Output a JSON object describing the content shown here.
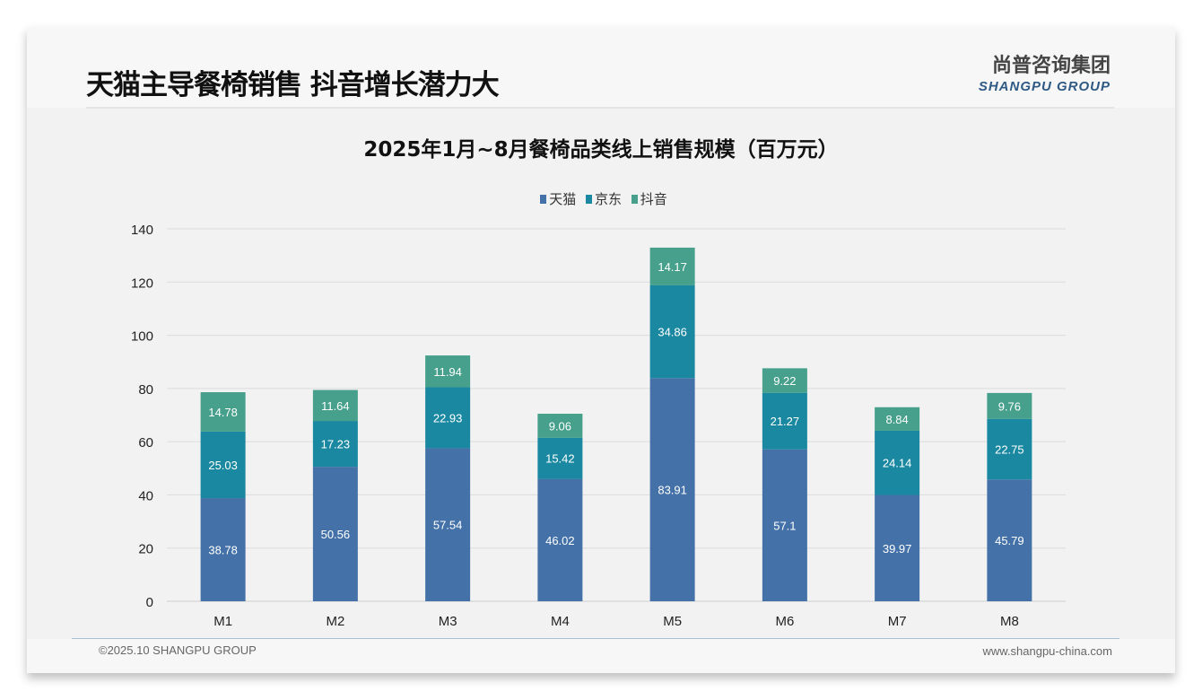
{
  "header": {
    "title": "天猫主导餐椅销售 抖音增长潜力大",
    "logo_cn": "尚普咨询集团",
    "logo_en": "SHANGPU GROUP"
  },
  "footer": {
    "copyright": "©2025.10 SHANGPU GROUP",
    "website": "www.shangpu-china.com"
  },
  "chart_data": {
    "type": "bar",
    "stacked": true,
    "title": "2025年1月~8月餐椅品类线上销售规模（百万元）",
    "categories": [
      "M1",
      "M2",
      "M3",
      "M4",
      "M5",
      "M6",
      "M7",
      "M8"
    ],
    "series": [
      {
        "name": "天猫",
        "color": "#4472a8",
        "values": [
          38.78,
          50.56,
          57.54,
          46.02,
          83.91,
          57.1,
          39.97,
          45.79
        ]
      },
      {
        "name": "京东",
        "color": "#1a88a0",
        "values": [
          25.03,
          17.23,
          22.93,
          15.42,
          34.86,
          21.27,
          24.14,
          22.75
        ]
      },
      {
        "name": "抖音",
        "color": "#46a08b",
        "values": [
          14.78,
          11.64,
          11.94,
          9.06,
          14.17,
          9.22,
          8.84,
          9.76
        ]
      }
    ],
    "ylim": [
      0,
      140
    ],
    "yticks": [
      0,
      20,
      40,
      60,
      80,
      100,
      120,
      140
    ],
    "grid": true,
    "legend": "top",
    "xlabel": "",
    "ylabel": ""
  }
}
